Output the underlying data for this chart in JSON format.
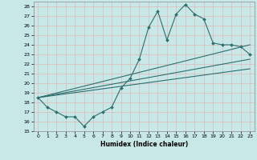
{
  "title": "",
  "xlabel": "Humidex (Indice chaleur)",
  "xlim": [
    -0.5,
    23.5
  ],
  "ylim": [
    15,
    28.5
  ],
  "yticks": [
    15,
    16,
    17,
    18,
    19,
    20,
    21,
    22,
    23,
    24,
    25,
    26,
    27,
    28
  ],
  "xticks": [
    0,
    1,
    2,
    3,
    4,
    5,
    6,
    7,
    8,
    9,
    10,
    11,
    12,
    13,
    14,
    15,
    16,
    17,
    18,
    19,
    20,
    21,
    22,
    23
  ],
  "line_color": "#2d6e6e",
  "bg_color": "#c8e8e8",
  "grid_color": "#b8d8d8",
  "main_x": [
    0,
    1,
    2,
    3,
    4,
    5,
    6,
    7,
    8,
    9,
    10,
    11,
    12,
    13,
    14,
    15,
    16,
    17,
    18,
    19,
    20,
    21,
    22,
    23
  ],
  "main_y": [
    18.5,
    17.5,
    17.0,
    16.5,
    16.5,
    15.5,
    16.5,
    17.0,
    17.5,
    19.5,
    20.5,
    22.5,
    25.8,
    27.5,
    24.5,
    27.2,
    28.2,
    27.2,
    26.7,
    24.2,
    24.0,
    24.0,
    23.8,
    23.0
  ],
  "trend1_x": [
    0,
    23
  ],
  "trend1_y": [
    18.5,
    24.0
  ],
  "trend2_x": [
    0,
    23
  ],
  "trend2_y": [
    18.5,
    22.5
  ],
  "trend3_x": [
    0,
    23
  ],
  "trend3_y": [
    18.5,
    21.5
  ],
  "line_width": 0.8,
  "marker_size": 2.0
}
